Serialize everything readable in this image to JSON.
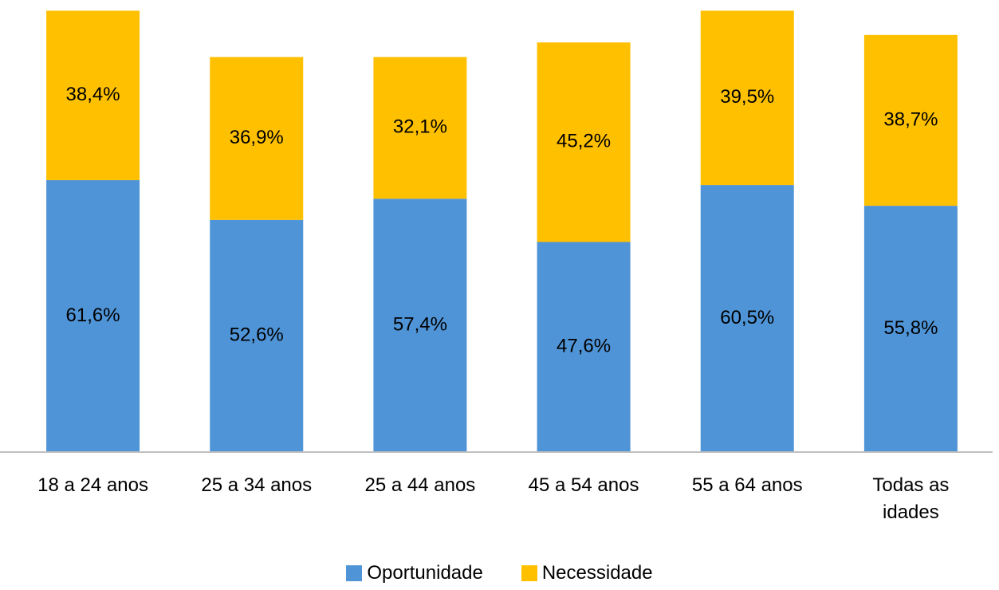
{
  "chart_data": {
    "type": "stacked_bar",
    "categories": [
      "18 a 24 anos",
      "25 a 34 anos",
      "25 a 44 anos",
      "45 a 54 anos",
      "55 a 64 anos",
      "Todas as idades"
    ],
    "series": [
      {
        "name": "Oportunidade",
        "color": "#4f94d7",
        "values": [
          61.6,
          52.6,
          57.4,
          47.6,
          60.5,
          55.8
        ],
        "value_labels": [
          "61,6%",
          "52,6%",
          "57,4%",
          "47,6%",
          "60,5%",
          "55,8%"
        ]
      },
      {
        "name": "Necessidade",
        "color": "#ffc000",
        "values": [
          38.4,
          36.9,
          32.1,
          45.2,
          39.5,
          38.7
        ],
        "value_labels": [
          "38,4%",
          "36,9%",
          "32,1%",
          "45,2%",
          "39,5%",
          "38,7%"
        ]
      }
    ],
    "ylim": [
      0,
      100
    ],
    "legend": "bottom"
  }
}
